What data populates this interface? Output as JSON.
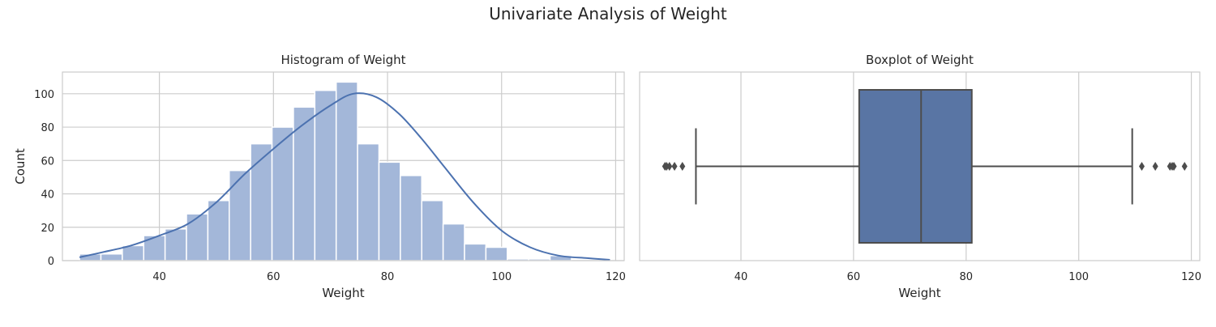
{
  "figure": {
    "title": "Univariate Analysis of Weight"
  },
  "chart_data": [
    {
      "type": "bar",
      "subtype": "histogram",
      "title": "Histogram of Weight",
      "xlabel": "Weight",
      "ylabel": "Count",
      "xlim": [
        23,
        121.5
      ],
      "ylim": [
        0,
        113
      ],
      "xticks": [
        40,
        60,
        80,
        100,
        120
      ],
      "yticks": [
        0,
        20,
        40,
        60,
        80,
        100
      ],
      "bin_start": 26,
      "bin_width": 3.75,
      "counts": [
        4,
        4,
        9,
        15,
        19,
        28,
        36,
        54,
        70,
        80,
        92,
        102,
        107,
        70,
        59,
        51,
        36,
        22,
        10,
        8,
        1,
        1,
        3
      ],
      "kde": {
        "x": [
          26,
          30,
          35,
          40,
          45,
          50,
          55,
          60,
          65,
          70,
          74,
          78,
          82,
          86,
          90,
          95,
          100,
          105,
          110,
          115,
          119
        ],
        "y": [
          2,
          5,
          9,
          15,
          22,
          35,
          52,
          67,
          81,
          93,
          100,
          98,
          88,
          73,
          56,
          35,
          18,
          8,
          3,
          1.5,
          0.5
        ]
      },
      "bar_color": "#a3b7d9",
      "line_color": "#4c72b0",
      "grid": true
    },
    {
      "type": "box",
      "title": "Boxplot of Weight",
      "xlabel": "Weight",
      "xlim": [
        22,
        121.5
      ],
      "xticks": [
        40,
        60,
        80,
        100,
        120
      ],
      "whisker_low": 32,
      "q1": 61,
      "median": 72,
      "q3": 81,
      "whisker_high": 109.5,
      "outliers": [
        26.5,
        26.8,
        27.3,
        28.2,
        29.6,
        111.2,
        113.6,
        116.2,
        116.6,
        116.9,
        118.8
      ],
      "box_color": "#5975a4",
      "line_color": "#4d4d4d",
      "grid": true
    }
  ]
}
